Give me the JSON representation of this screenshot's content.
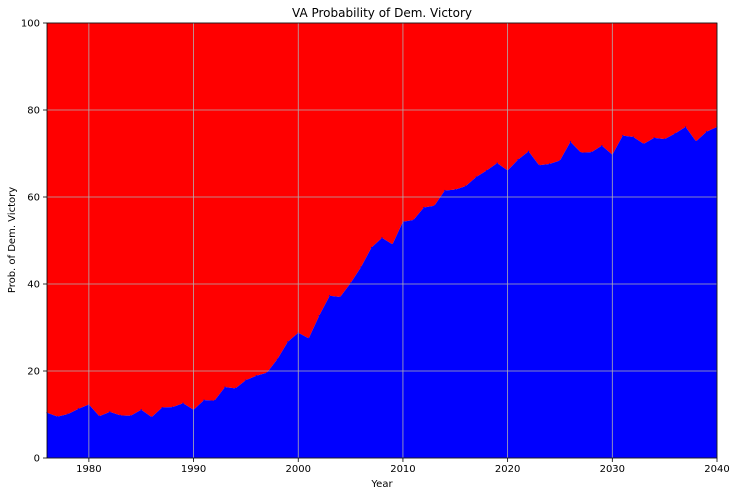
{
  "chart_data": {
    "type": "area",
    "title": "VA Probability of Dem. Victory",
    "xlabel": "Year",
    "ylabel": "Prob. of Dem. Victory",
    "xlim": [
      1976,
      2040
    ],
    "ylim": [
      0,
      100
    ],
    "xticks": [
      1980,
      1990,
      2000,
      2010,
      2020,
      2030,
      2040
    ],
    "yticks": [
      0,
      20,
      40,
      60,
      80,
      100
    ],
    "grid": true,
    "legend": "none",
    "colors": {
      "dem_area": "#0000ff",
      "rep_area": "#ff0000",
      "grid": "#b0b0b0"
    },
    "x": [
      1976,
      1977,
      1978,
      1979,
      1980,
      1981,
      1982,
      1983,
      1984,
      1985,
      1986,
      1987,
      1988,
      1989,
      1990,
      1991,
      1992,
      1993,
      1994,
      1995,
      1996,
      1997,
      1998,
      1999,
      2000,
      2001,
      2002,
      2003,
      2004,
      2005,
      2006,
      2007,
      2008,
      2009,
      2010,
      2011,
      2012,
      2013,
      2014,
      2015,
      2016,
      2017,
      2018,
      2019,
      2020,
      2021,
      2022,
      2023,
      2024,
      2025,
      2026,
      2027,
      2028,
      2029,
      2030,
      2031,
      2032,
      2033,
      2034,
      2035,
      2036,
      2037,
      2038,
      2039,
      2040
    ],
    "series": [
      {
        "values": [
          10.4,
          9.5,
          10.1,
          11.3,
          12.3,
          9.6,
          10.6,
          9.8,
          9.7,
          11.1,
          9.4,
          11.6,
          11.7,
          12.6,
          11.1,
          13.3,
          13.2,
          16.3,
          16.0,
          17.9,
          18.9,
          19.6,
          22.7,
          26.7,
          28.8,
          27.5,
          32.7,
          37.3,
          37.0,
          40.2,
          43.9,
          48.4,
          50.6,
          49.1,
          54.3,
          54.7,
          57.6,
          58.0,
          61.5,
          61.7,
          62.5,
          64.6,
          66.1,
          67.8,
          66.1,
          68.6,
          70.5,
          67.3,
          67.6,
          68.4,
          72.7,
          70.2,
          70.3,
          71.8,
          69.7,
          74.1,
          73.8,
          72.2,
          73.6,
          73.3,
          74.6,
          76.1,
          72.8,
          75.0,
          76.1
        ]
      }
    ]
  }
}
